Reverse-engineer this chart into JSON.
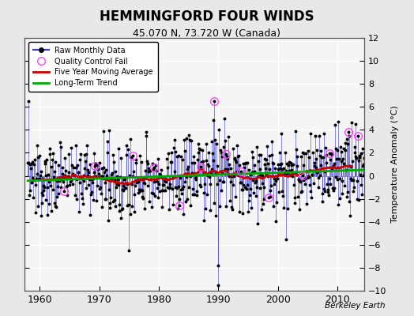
{
  "title": "HEMMINGFORD FOUR WINDS",
  "subtitle": "45.070 N, 73.720 W (Canada)",
  "ylabel": "Temperature Anomaly (°C)",
  "xlabel_note": "Berkeley Earth",
  "ylim": [
    -10,
    12
  ],
  "yticks": [
    -10,
    -8,
    -6,
    -4,
    -2,
    0,
    2,
    4,
    6,
    8,
    10,
    12
  ],
  "xlim": [
    1957.5,
    2014.5
  ],
  "xticks": [
    1960,
    1970,
    1980,
    1990,
    2000,
    2010
  ],
  "bg_color": "#e8e8e8",
  "plot_bg_color": "#f5f5f5",
  "line_color": "#3333cc",
  "marker_color": "#000000",
  "moving_avg_color": "#cc0000",
  "trend_color": "#00aa00",
  "qc_color": "#ff44ff",
  "seed": 137
}
